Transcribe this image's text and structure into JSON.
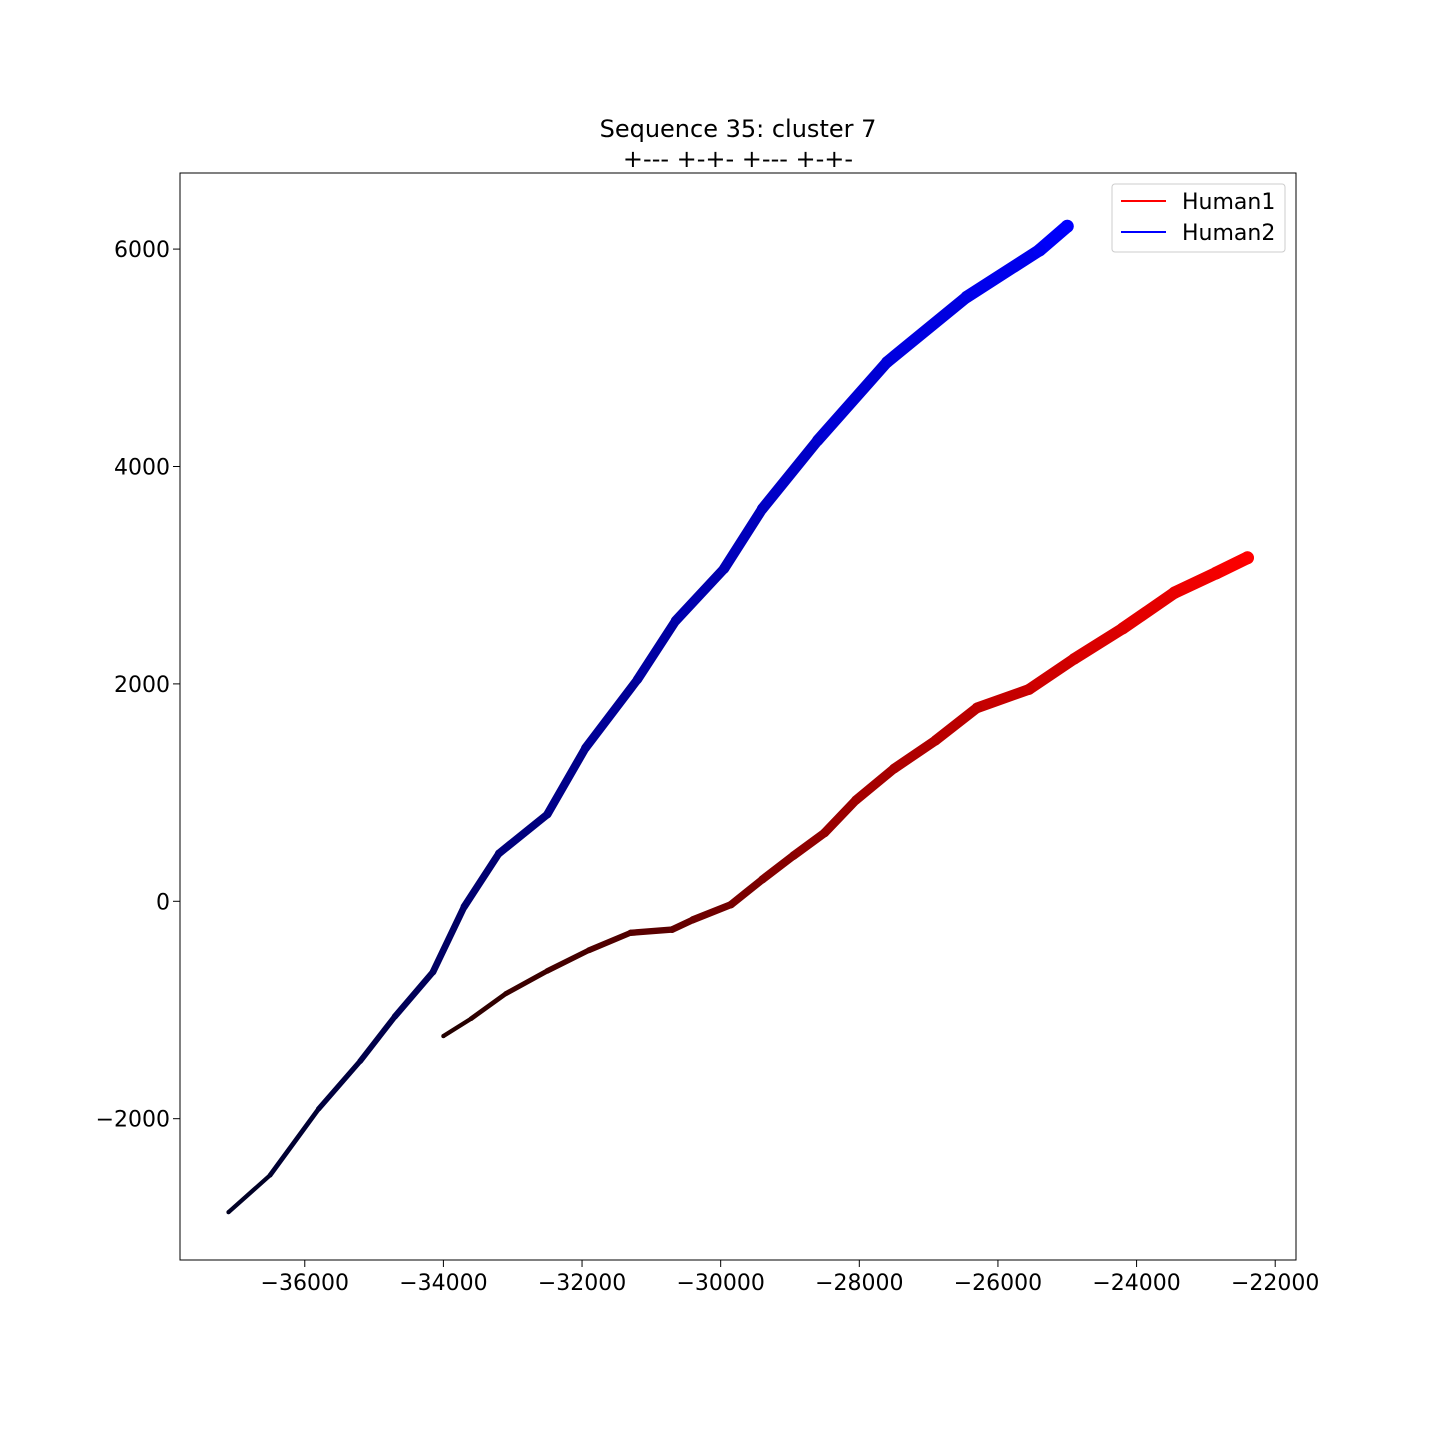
{
  "chart_data": {
    "type": "line",
    "title": "Sequence 35: cluster 7",
    "subtitle": "+--- +-+- +--- +-+-",
    "xlabel": "",
    "ylabel": "",
    "xlim": [
      -37800,
      -21700
    ],
    "ylim": [
      -3300,
      6700
    ],
    "xticks": [
      -36000,
      -34000,
      -32000,
      -30000,
      -28000,
      -26000,
      -24000,
      -22000
    ],
    "xtick_labels": [
      "−36000",
      "−34000",
      "−32000",
      "−30000",
      "−28000",
      "−26000",
      "−24000",
      "−22000"
    ],
    "yticks": [
      -2000,
      0,
      2000,
      4000,
      6000
    ],
    "ytick_labels": [
      "−2000",
      "0",
      "2000",
      "4000",
      "6000"
    ],
    "grid": false,
    "legend_position": "top-right",
    "series": [
      {
        "name": "Human1",
        "color": "#ff0000",
        "start_color": "#200000",
        "x": [
          -34000,
          -33600,
          -33100,
          -32500,
          -31900,
          -31300,
          -30700,
          -30400,
          -29850,
          -29400,
          -28950,
          -28500,
          -28050,
          -27500,
          -26900,
          -26300,
          -25550,
          -24900,
          -24200,
          -23450,
          -22850,
          -22400
        ],
        "y": [
          -1240,
          -1080,
          -850,
          -640,
          -450,
          -290,
          -260,
          -170,
          -30,
          200,
          420,
          630,
          930,
          1220,
          1480,
          1780,
          1950,
          2230,
          2510,
          2840,
          3020,
          3160
        ]
      },
      {
        "name": "Human2",
        "color": "#0000ff",
        "start_color": "#000020",
        "x": [
          -37100,
          -36500,
          -35800,
          -35200,
          -34700,
          -34150,
          -33700,
          -33200,
          -32500,
          -31950,
          -31200,
          -30650,
          -29950,
          -29400,
          -28600,
          -27600,
          -26450,
          -25400,
          -25000
        ],
        "y": [
          -2860,
          -2520,
          -1910,
          -1470,
          -1060,
          -650,
          -50,
          440,
          800,
          1410,
          2040,
          2580,
          3060,
          3610,
          4240,
          4960,
          5560,
          5990,
          6210
        ]
      }
    ]
  }
}
